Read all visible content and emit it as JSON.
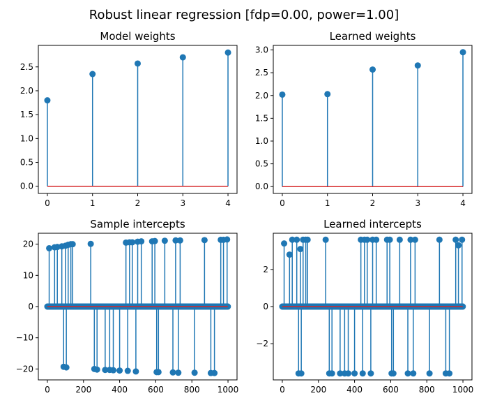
{
  "figure_title": "Robust linear regression [fdp=0.00, power=1.00]",
  "colors": {
    "stem": "#1f77b4",
    "baseline": "#d62728",
    "frame": "#000000"
  },
  "chart_data": [
    {
      "type": "stem",
      "title": "Model weights",
      "x": [
        0,
        1,
        2,
        3,
        4
      ],
      "y": [
        1.8,
        2.35,
        2.57,
        2.7,
        2.8
      ],
      "xlim": [
        -0.2,
        4.2
      ],
      "ylim": [
        -0.15,
        2.95
      ],
      "xticks": [
        0,
        1,
        2,
        3,
        4
      ],
      "xtick_labels": [
        "0",
        "1",
        "2",
        "3",
        "4"
      ],
      "yticks": [
        0.0,
        0.5,
        1.0,
        1.5,
        2.0,
        2.5
      ],
      "ytick_labels": [
        "0.0",
        "0.5",
        "1.0",
        "1.5",
        "2.0",
        "2.5"
      ]
    },
    {
      "type": "stem",
      "title": "Learned weights",
      "x": [
        0,
        1,
        2,
        3,
        4
      ],
      "y": [
        2.02,
        2.03,
        2.57,
        2.66,
        2.95
      ],
      "xlim": [
        -0.2,
        4.2
      ],
      "ylim": [
        -0.15,
        3.1
      ],
      "xticks": [
        0,
        1,
        2,
        3,
        4
      ],
      "xtick_labels": [
        "0",
        "1",
        "2",
        "3",
        "4"
      ],
      "yticks": [
        0.0,
        0.5,
        1.0,
        1.5,
        2.0,
        2.5,
        3.0
      ],
      "ytick_labels": [
        "0.0",
        "0.5",
        "1.0",
        "1.5",
        "2.0",
        "2.5",
        "3.0"
      ]
    },
    {
      "type": "stem",
      "title": "Sample intercepts",
      "n_points": 1000,
      "nonzero": [
        [
          10,
          18.7
        ],
        [
          40,
          19.0
        ],
        [
          55,
          19.1
        ],
        [
          80,
          19.3
        ],
        [
          90,
          -19.3
        ],
        [
          100,
          19.5
        ],
        [
          105,
          -19.5
        ],
        [
          115,
          19.8
        ],
        [
          130,
          20.0
        ],
        [
          140,
          20.0
        ],
        [
          240,
          20.1
        ],
        [
          260,
          -20.0
        ],
        [
          275,
          -20.2
        ],
        [
          320,
          -20.3
        ],
        [
          345,
          -20.3
        ],
        [
          365,
          -20.4
        ],
        [
          400,
          -20.5
        ],
        [
          435,
          20.5
        ],
        [
          445,
          -20.6
        ],
        [
          455,
          20.6
        ],
        [
          470,
          20.6
        ],
        [
          490,
          -20.8
        ],
        [
          500,
          20.8
        ],
        [
          520,
          20.9
        ],
        [
          580,
          20.9
        ],
        [
          595,
          21.0
        ],
        [
          605,
          -21.0
        ],
        [
          615,
          -21.0
        ],
        [
          650,
          21.1
        ],
        [
          695,
          -21.1
        ],
        [
          710,
          21.2
        ],
        [
          725,
          -21.2
        ],
        [
          735,
          21.2
        ],
        [
          815,
          -21.2
        ],
        [
          870,
          21.3
        ],
        [
          905,
          -21.3
        ],
        [
          925,
          -21.3
        ],
        [
          960,
          21.4
        ],
        [
          975,
          21.4
        ],
        [
          995,
          21.5
        ]
      ],
      "xlim": [
        -50,
        1050
      ],
      "ylim": [
        -23.5,
        23.5
      ],
      "xticks": [
        0,
        200,
        400,
        600,
        800,
        1000
      ],
      "xtick_labels": [
        "0",
        "200",
        "400",
        "600",
        "800",
        "1000"
      ],
      "yticks": [
        -20,
        -10,
        0,
        10,
        20
      ],
      "ytick_labels": [
        "−20",
        "−10",
        "0",
        "10",
        "20"
      ]
    },
    {
      "type": "stem",
      "title": "Learned intercepts",
      "n_points": 1000,
      "nonzero": [
        [
          10,
          3.4
        ],
        [
          40,
          2.8
        ],
        [
          55,
          3.6
        ],
        [
          80,
          3.6
        ],
        [
          90,
          -3.6
        ],
        [
          100,
          3.1
        ],
        [
          105,
          -3.6
        ],
        [
          115,
          3.6
        ],
        [
          130,
          3.6
        ],
        [
          140,
          3.6
        ],
        [
          240,
          3.6
        ],
        [
          260,
          -3.6
        ],
        [
          275,
          -3.6
        ],
        [
          320,
          -3.6
        ],
        [
          345,
          -3.6
        ],
        [
          365,
          -3.6
        ],
        [
          400,
          -3.6
        ],
        [
          435,
          3.6
        ],
        [
          445,
          -3.6
        ],
        [
          455,
          3.6
        ],
        [
          470,
          3.6
        ],
        [
          490,
          -3.6
        ],
        [
          500,
          3.6
        ],
        [
          520,
          3.6
        ],
        [
          580,
          3.6
        ],
        [
          595,
          3.6
        ],
        [
          605,
          -3.6
        ],
        [
          615,
          -3.6
        ],
        [
          650,
          3.6
        ],
        [
          695,
          -3.6
        ],
        [
          710,
          3.6
        ],
        [
          725,
          -3.6
        ],
        [
          735,
          3.6
        ],
        [
          815,
          -3.6
        ],
        [
          870,
          3.6
        ],
        [
          905,
          -3.6
        ],
        [
          925,
          -3.6
        ],
        [
          960,
          3.6
        ],
        [
          975,
          3.3
        ],
        [
          995,
          3.6
        ]
      ],
      "xlim": [
        -50,
        1050
      ],
      "ylim": [
        -3.95,
        3.95
      ],
      "xticks": [
        0,
        200,
        400,
        600,
        800,
        1000
      ],
      "xtick_labels": [
        "0",
        "200",
        "400",
        "600",
        "800",
        "1000"
      ],
      "yticks": [
        -2,
        0,
        2
      ],
      "ytick_labels": [
        "−2",
        "0",
        "2"
      ]
    }
  ]
}
